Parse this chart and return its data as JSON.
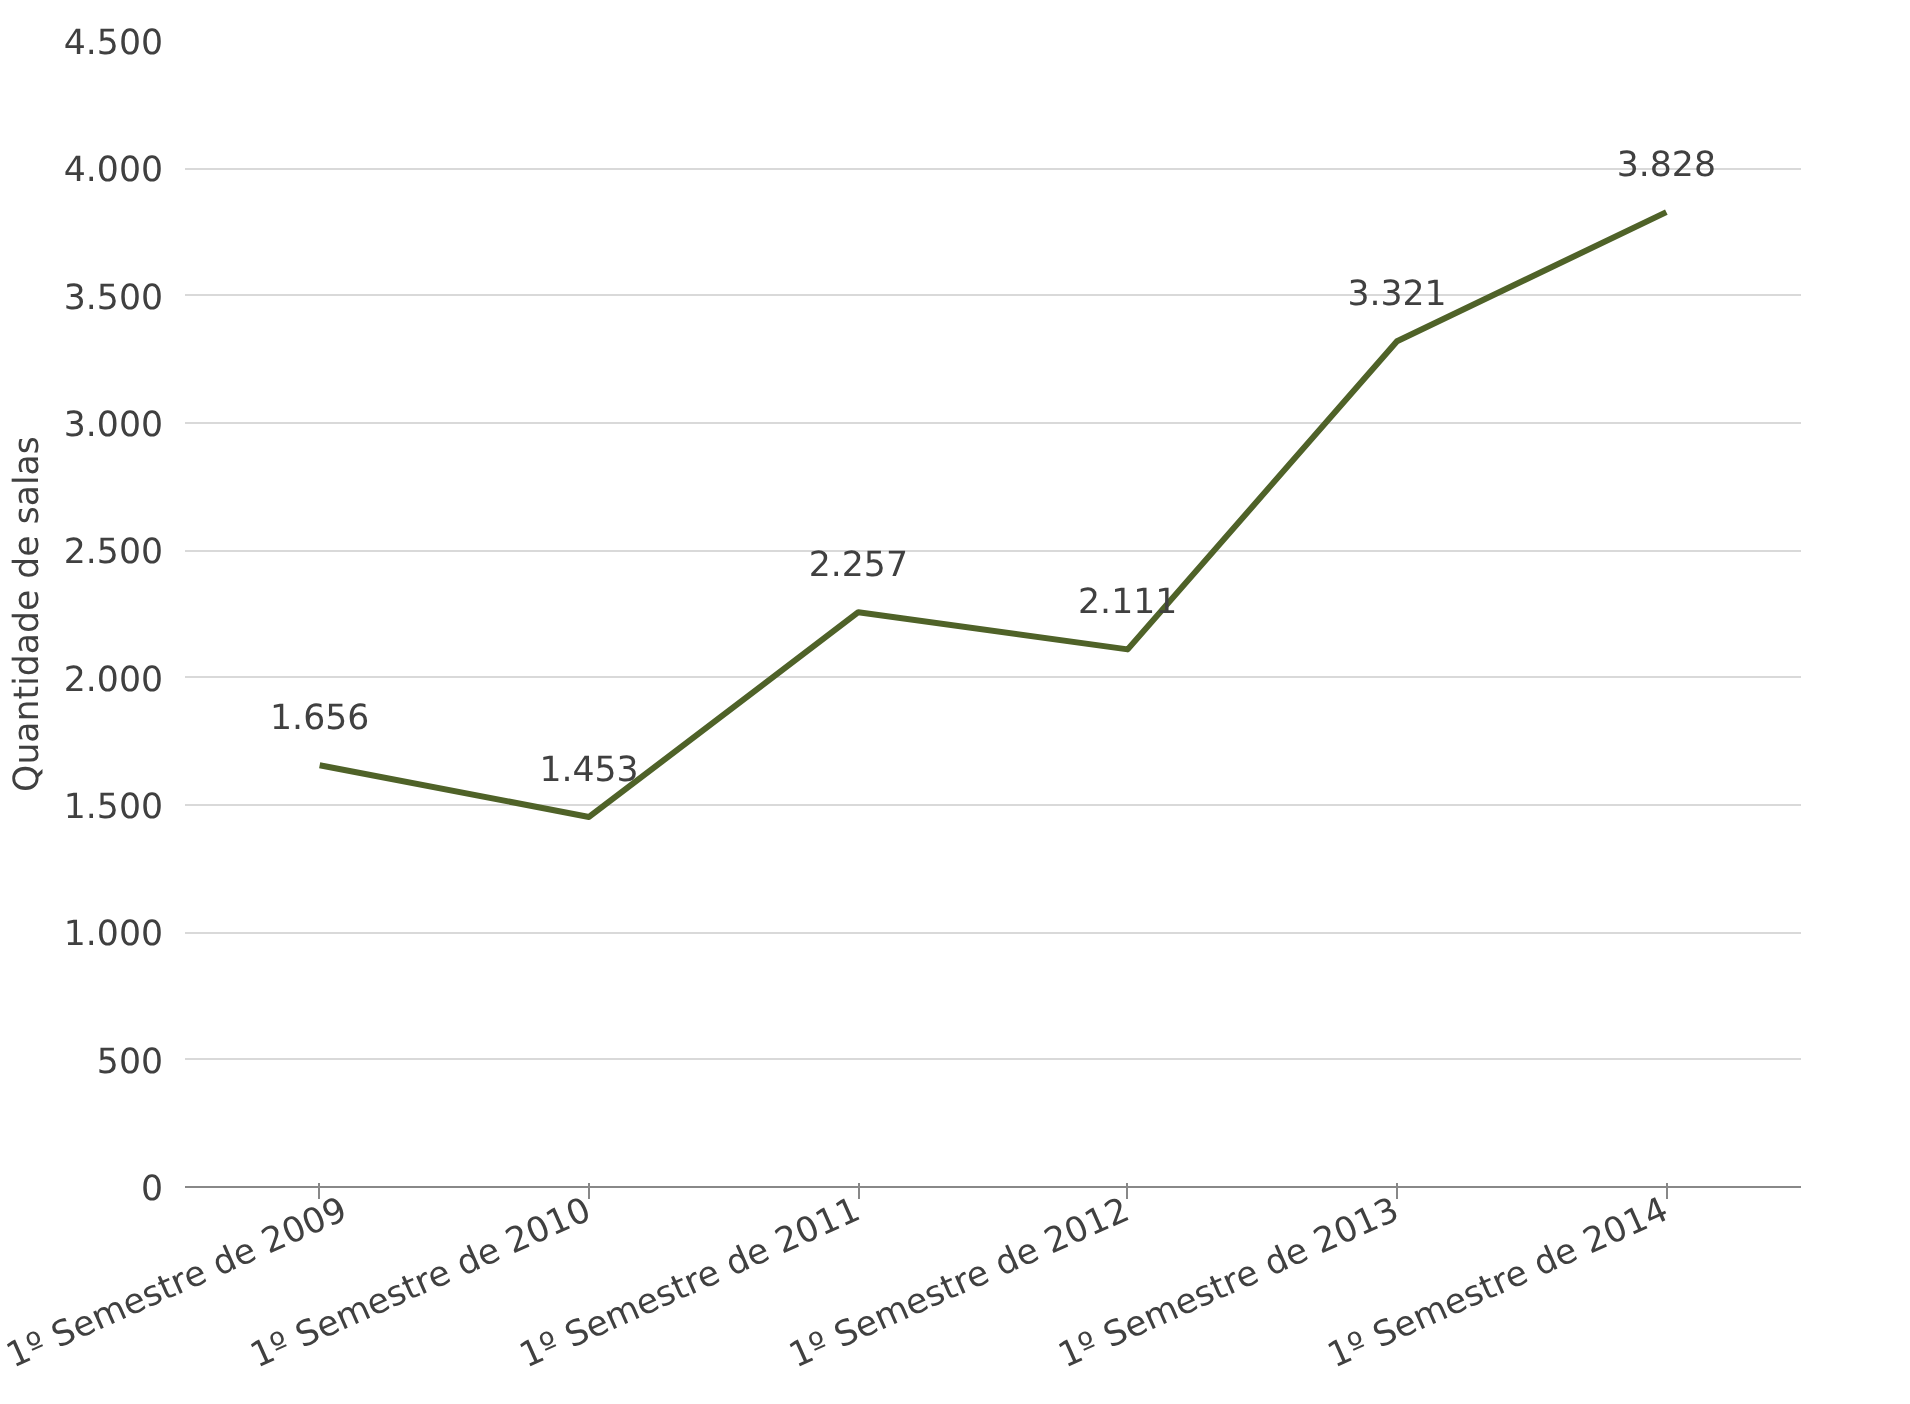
{
  "chart_data": {
    "type": "line",
    "ylabel": "Quantidade de salas",
    "categories": [
      "1º Semestre de 2009",
      "1º Semestre de 2010",
      "1º Semestre de 2011",
      "1º Semestre de 2012",
      "1º Semestre de 2013",
      "1º Semestre de 2014"
    ],
    "series": [
      {
        "color": "#4f6228",
        "values": [
          1656,
          1453,
          2257,
          2111,
          3321,
          3828
        ]
      }
    ],
    "value_labels": [
      "1.656",
      "1.453",
      "2.257",
      "2.111",
      "3.321",
      "3.828"
    ],
    "ylim": [
      0,
      4500
    ],
    "yticks": [
      0,
      {
        "value": 500,
        "label": "500"
      },
      {
        "value": 1000,
        "label": "1.000"
      },
      {
        "value": 1500,
        "label": "1.500"
      },
      {
        "value": 2000,
        "label": "2.000"
      },
      {
        "value": 2500,
        "label": "2.500"
      },
      {
        "value": 3000,
        "label": "3.000"
      },
      {
        "value": 3500,
        "label": "3.500"
      },
      {
        "value": 4000,
        "label": "4.000"
      },
      {
        "value": 4500,
        "label": "4.500"
      }
    ],
    "grid": "y",
    "marker": "none",
    "line_style": "solid"
  }
}
